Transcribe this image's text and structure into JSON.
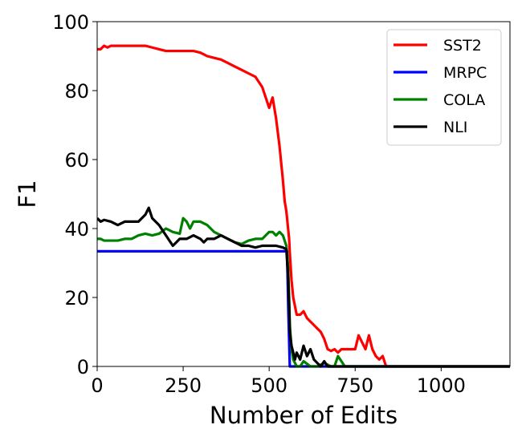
{
  "chart_data": {
    "type": "line",
    "title": "",
    "xlabel": "Number of Edits",
    "ylabel": "F1",
    "xlim": [
      0,
      1200
    ],
    "ylim": [
      0,
      100
    ],
    "xticks": [
      0,
      250,
      500,
      750,
      1000
    ],
    "yticks": [
      0,
      20,
      40,
      60,
      80,
      100
    ],
    "grid": false,
    "legend_position": "top-right",
    "series": [
      {
        "name": "SST2",
        "color": "#ff0000",
        "x": [
          0,
          10,
          20,
          30,
          40,
          60,
          80,
          100,
          120,
          140,
          160,
          180,
          200,
          220,
          240,
          260,
          280,
          300,
          320,
          340,
          360,
          380,
          400,
          420,
          440,
          460,
          480,
          490,
          500,
          510,
          520,
          530,
          540,
          545,
          550,
          555,
          558,
          560,
          565,
          570,
          580,
          590,
          600,
          610,
          620,
          630,
          640,
          650,
          660,
          670,
          680,
          690,
          700,
          710,
          720,
          730,
          740,
          750,
          760,
          770,
          780,
          790,
          800,
          810,
          820,
          830,
          840,
          900,
          1000,
          1100,
          1200
        ],
        "y": [
          92,
          92,
          93,
          92.5,
          93,
          93,
          93,
          93,
          93,
          93,
          92.5,
          92,
          91.5,
          91.5,
          91.5,
          91.5,
          91.5,
          91,
          90,
          89.5,
          89,
          88,
          87,
          86,
          85,
          84,
          81,
          78,
          75,
          78,
          72,
          64,
          54,
          48,
          45,
          40,
          37,
          33,
          25,
          20,
          15,
          15,
          16,
          14,
          13,
          12,
          11,
          10,
          8,
          5,
          4.5,
          5,
          4,
          5,
          5,
          5,
          5,
          5,
          9,
          7,
          5,
          9,
          5,
          3,
          2,
          3,
          0,
          0,
          0,
          0,
          0
        ]
      },
      {
        "name": "MRPC",
        "color": "#0000ff",
        "x": [
          0,
          100,
          200,
          300,
          400,
          500,
          540,
          552,
          556,
          560,
          580,
          650,
          800,
          1000,
          1200
        ],
        "y": [
          33.4,
          33.4,
          33.4,
          33.4,
          33.4,
          33.4,
          33.4,
          33.4,
          15,
          0,
          0,
          0,
          0,
          0,
          0
        ]
      },
      {
        "name": "COLA",
        "color": "#008000",
        "x": [
          0,
          10,
          20,
          40,
          60,
          80,
          100,
          120,
          140,
          160,
          180,
          200,
          220,
          240,
          250,
          260,
          270,
          280,
          300,
          320,
          340,
          360,
          380,
          400,
          420,
          440,
          460,
          480,
          500,
          510,
          520,
          530,
          540,
          550,
          555,
          558,
          560,
          565,
          570,
          580,
          590,
          600,
          620,
          640,
          660,
          680,
          690,
          700,
          720,
          800,
          1000,
          1200
        ],
        "y": [
          37,
          37,
          36.5,
          36.5,
          36.5,
          37,
          37,
          38,
          38.5,
          38,
          38.5,
          40,
          39,
          38.5,
          43,
          42,
          40,
          42,
          42,
          41,
          39,
          38,
          37,
          36,
          35.5,
          36.5,
          37,
          37,
          39,
          39,
          38,
          39,
          38,
          35,
          29,
          20,
          12,
          5,
          2,
          0,
          0,
          1.5,
          0,
          0,
          1,
          0,
          0,
          3,
          0,
          0,
          0,
          0
        ]
      },
      {
        "name": "NLI",
        "color": "#000000",
        "x": [
          0,
          10,
          20,
          40,
          60,
          80,
          100,
          120,
          140,
          150,
          160,
          180,
          200,
          220,
          230,
          240,
          260,
          280,
          300,
          310,
          320,
          340,
          360,
          380,
          400,
          420,
          440,
          460,
          480,
          500,
          520,
          540,
          550,
          555,
          558,
          560,
          565,
          570,
          575,
          580,
          590,
          600,
          610,
          620,
          630,
          640,
          650,
          660,
          670,
          680,
          690,
          700,
          800,
          1000,
          1200
        ],
        "y": [
          43,
          42,
          42.5,
          42,
          41,
          42,
          42,
          42,
          44,
          46,
          43,
          41,
          38,
          35,
          36,
          37,
          37,
          38,
          37,
          36,
          37,
          37,
          38,
          37,
          36,
          35,
          35,
          34.5,
          35,
          35,
          35,
          34.5,
          34,
          26,
          18,
          10,
          6,
          4,
          2,
          4,
          2,
          6,
          3,
          5,
          2,
          1,
          0,
          1.5,
          0,
          0,
          0,
          0,
          0,
          0,
          0
        ]
      }
    ]
  }
}
